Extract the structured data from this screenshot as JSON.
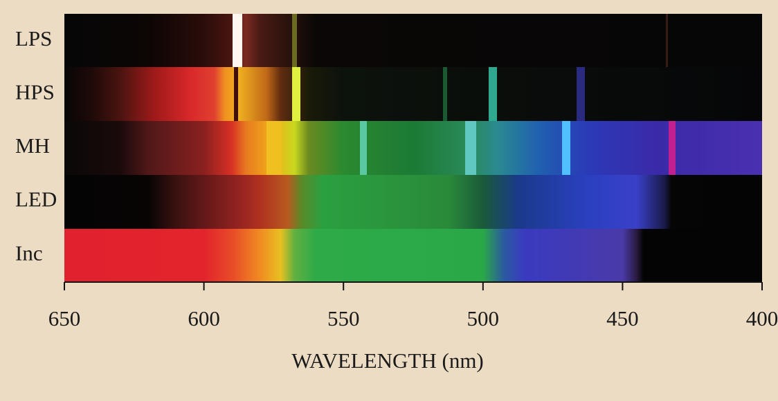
{
  "chart_data": {
    "type": "spectrum",
    "categories": [
      "LPS",
      "HPS",
      "MH",
      "LED",
      "Inc"
    ],
    "xlabel": "WAVELENGTH (nm)",
    "xlim": [
      650,
      400
    ],
    "xticks": [
      650,
      600,
      550,
      500,
      450,
      400
    ]
  }
}
